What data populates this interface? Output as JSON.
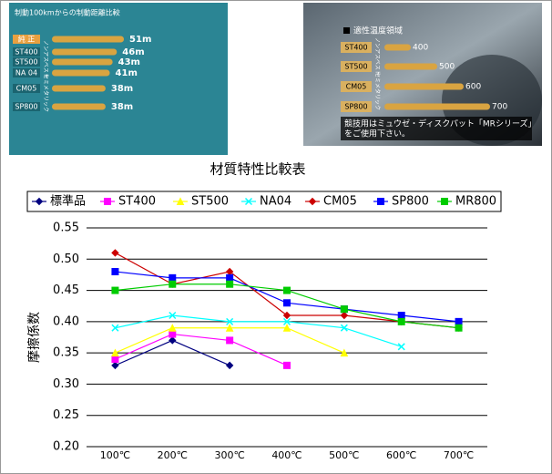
{
  "chart_data": [
    {
      "type": "hbar",
      "title": "制動100kmからの制動距離比較",
      "categories": [
        "純 正",
        "ST400",
        "ST500",
        "NA 04",
        "CM05",
        "SP800"
      ],
      "values": [
        51,
        46,
        43,
        41,
        38,
        38
      ],
      "value_labels": [
        "51m",
        "46m",
        "43m",
        "41m",
        "38m",
        "38m"
      ],
      "group_labels": [
        "ノンアスベスト",
        "セミメタリック"
      ],
      "color": "#d9a441"
    },
    {
      "type": "hbar-temp",
      "title": "適性温度領域",
      "categories": [
        "ST400",
        "ST500",
        "CM05",
        "SP800"
      ],
      "values": [
        400,
        500,
        600,
        700
      ],
      "group_labels": [
        "ノンアスベスト",
        "セミメタリック"
      ],
      "note": [
        "競技用はミュウゼ・ディスクパット「MRシリーズ」",
        "をご使用下さい。"
      ],
      "color": "#d9a441"
    },
    {
      "type": "line",
      "title": "材質特性比較表",
      "y_label": "摩擦係数",
      "categories": [
        "100℃",
        "200℃",
        "300℃",
        "400℃",
        "500℃",
        "600℃",
        "700℃"
      ],
      "ylim": [
        0.2,
        0.55
      ],
      "yticks": [
        {
          "value": 0.2,
          "label": "0.20"
        },
        {
          "value": 0.25,
          "label": "0.25"
        },
        {
          "value": 0.3,
          "label": "0.30"
        },
        {
          "value": 0.35,
          "label": "0.35"
        },
        {
          "value": 0.4,
          "label": "0.40"
        },
        {
          "value": 0.45,
          "label": "0.45"
        },
        {
          "value": 0.5,
          "label": "0.50"
        },
        {
          "value": 0.55,
          "label": "0.55"
        }
      ],
      "grid": true,
      "series": [
        {
          "name": "標準品",
          "color": "#000080",
          "marker": "diamond",
          "values": [
            0.33,
            0.37,
            0.33,
            null,
            null,
            null,
            null
          ]
        },
        {
          "name": "ST400",
          "color": "#ff00ff",
          "marker": "square",
          "values": [
            0.34,
            0.38,
            0.37,
            0.33,
            null,
            null,
            null
          ]
        },
        {
          "name": "ST500",
          "color": "#ffff00",
          "marker": "triangle",
          "values": [
            0.35,
            0.39,
            0.39,
            0.39,
            0.35,
            null,
            null
          ]
        },
        {
          "name": "NA04",
          "color": "#00ffff",
          "marker": "cross",
          "values": [
            0.39,
            0.41,
            0.4,
            0.4,
            0.39,
            0.36,
            null
          ]
        },
        {
          "name": "CM05",
          "color": "#cc0000",
          "marker": "diamond",
          "values": [
            0.51,
            0.46,
            0.48,
            0.41,
            0.41,
            0.4,
            0.39
          ]
        },
        {
          "name": "SP800",
          "color": "#0000ff",
          "marker": "square",
          "values": [
            0.48,
            0.47,
            0.47,
            0.43,
            0.42,
            0.41,
            0.4
          ]
        },
        {
          "name": "MR800",
          "color": "#00cc00",
          "marker": "square",
          "values": [
            0.45,
            0.46,
            0.46,
            0.45,
            0.42,
            0.4,
            0.39
          ]
        }
      ]
    }
  ]
}
